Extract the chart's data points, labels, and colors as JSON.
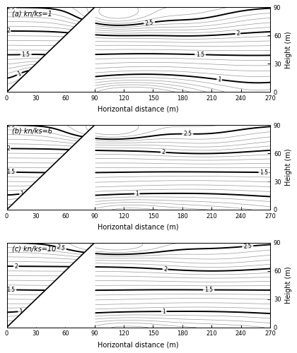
{
  "subplots": [
    {
      "label": "(a) kn/ks=1",
      "kn_ks": 1
    },
    {
      "label": "(b) kn/ks=6",
      "kn_ks": 6
    },
    {
      "label": "(c) kn/ks=10",
      "kn_ks": 10
    }
  ],
  "x_range": [
    0,
    270
  ],
  "y_range": [
    0,
    90
  ],
  "x_ticks": [
    0,
    30,
    60,
    90,
    120,
    150,
    180,
    210,
    240,
    270
  ],
  "y_ticks": [
    0,
    30,
    60,
    90
  ],
  "xlabel": "Horizontal distance (m)",
  "ylabel": "Height (m)",
  "contour_levels_labeled": [
    1.0,
    1.5,
    2.0,
    2.5
  ],
  "contour_min": 0.5,
  "contour_max": 3.2,
  "contour_step": 0.1,
  "bg_color": "#ffffff",
  "contour_color_thin": "#999999",
  "contour_color_thick": "#000000",
  "lw_thin": 0.5,
  "lw_thick": 1.4
}
